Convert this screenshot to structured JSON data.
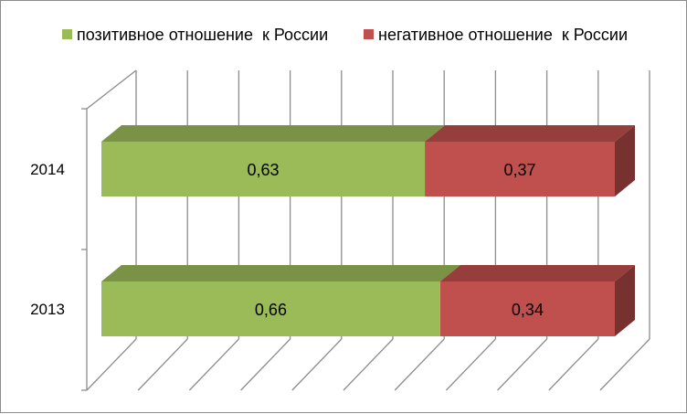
{
  "chart_data": {
    "type": "bar",
    "orientation": "horizontal",
    "stacked": true,
    "style": "3d",
    "categories": [
      "2014",
      "2013"
    ],
    "series": [
      {
        "name": "позитивное отношение  к России",
        "values": [
          0.63,
          0.66
        ],
        "labels": [
          "0,63",
          "0,66"
        ],
        "color": "#9BBB59"
      },
      {
        "name": "негативное отношение  к России",
        "values": [
          0.37,
          0.34
        ],
        "labels": [
          "0,37",
          "0,34"
        ],
        "color": "#C0504D"
      }
    ],
    "xlim": [
      0,
      1
    ],
    "grid": true,
    "legend_position": "top"
  }
}
